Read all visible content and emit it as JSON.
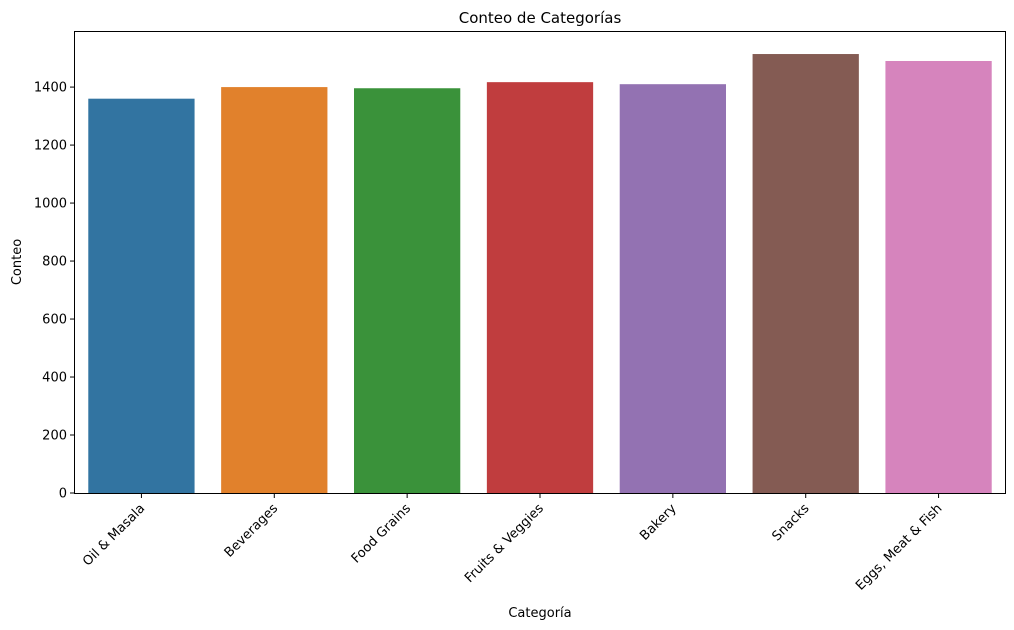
{
  "chart_data": {
    "type": "bar",
    "title": "Conteo de Categorías",
    "xlabel": "Categoría",
    "ylabel": "Conteo",
    "categories": [
      "Oil & Masala",
      "Beverages",
      "Food Grains",
      "Fruits & Veggies",
      "Bakery",
      "Snacks",
      "Eggs, Meat & Fish"
    ],
    "values": [
      1360,
      1400,
      1396,
      1417,
      1410,
      1514,
      1490
    ],
    "colors": [
      "#3274a1",
      "#e1812c",
      "#3a923a",
      "#c03d3e",
      "#9372b2",
      "#845b53",
      "#d684bd"
    ],
    "ylim": [
      0,
      1590
    ],
    "yticks": [
      0,
      200,
      400,
      600,
      800,
      1000,
      1200,
      1400
    ],
    "grid": false,
    "legend": "none"
  }
}
